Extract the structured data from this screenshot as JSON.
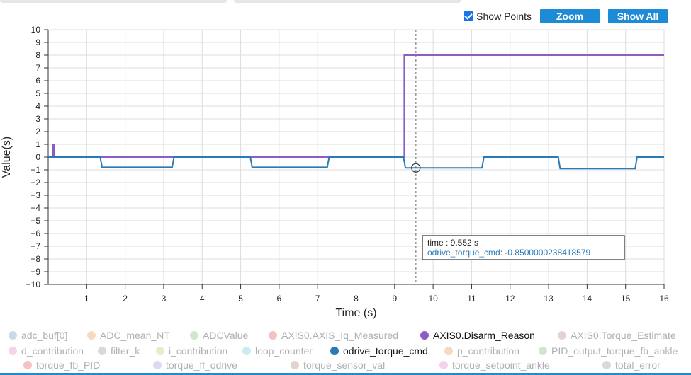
{
  "toolbar": {
    "show_points_label": "Show Points",
    "zoom_label": "Zoom",
    "show_all_label": "Show All"
  },
  "tooltip": {
    "line1": "time : 9.552 s",
    "line2": "odrive_torque_cmd: -0.8500000238418579"
  },
  "chart_data": {
    "type": "line",
    "xlabel": "Time (s)",
    "ylabel": "Value(s)",
    "xlim": [
      0,
      16
    ],
    "ylim": [
      -10,
      10
    ],
    "x_ticks": [
      1,
      2,
      3,
      4,
      5,
      6,
      7,
      8,
      9,
      10,
      11,
      12,
      13,
      14,
      15,
      16
    ],
    "y_ticks": [
      10,
      9,
      8,
      7,
      6,
      5,
      4,
      3,
      2,
      1,
      0,
      -1,
      -2,
      -3,
      -4,
      -5,
      -6,
      -7,
      -8,
      -9,
      -10
    ],
    "grid": true,
    "cursor_time": 9.552,
    "series": [
      {
        "name": "AXIS0.Disarm_Reason",
        "color": "#8e5cc4",
        "points": [
          [
            0,
            0
          ],
          [
            0.12,
            0
          ],
          [
            0.12,
            1
          ],
          [
            0.15,
            1
          ],
          [
            0.15,
            0
          ],
          [
            1.4,
            0
          ],
          [
            3.2,
            0
          ],
          [
            5.3,
            0
          ],
          [
            7.2,
            0
          ],
          [
            9.25,
            0
          ],
          [
            9.25,
            8
          ],
          [
            16,
            8
          ]
        ]
      },
      {
        "name": "odrive_torque_cmd",
        "color": "#2a7ab8",
        "points": [
          [
            0,
            0
          ],
          [
            1.35,
            0
          ],
          [
            1.4,
            -0.8
          ],
          [
            3.22,
            -0.8
          ],
          [
            3.27,
            0
          ],
          [
            5.25,
            0
          ],
          [
            5.3,
            -0.8
          ],
          [
            7.25,
            -0.8
          ],
          [
            7.3,
            0
          ],
          [
            9.23,
            0
          ],
          [
            9.28,
            -0.85
          ],
          [
            11.27,
            -0.85
          ],
          [
            11.32,
            0
          ],
          [
            13.25,
            0
          ],
          [
            13.3,
            -0.9
          ],
          [
            15.25,
            -0.9
          ],
          [
            15.3,
            0
          ],
          [
            16,
            0
          ]
        ]
      }
    ],
    "legend": [
      {
        "name": "adc_buf[0]",
        "color": "#c9dbe8",
        "active": false
      },
      {
        "name": "ADC_mean_NT",
        "color": "#f7d9bf",
        "active": false
      },
      {
        "name": "ADCValue",
        "color": "#cfe8cc",
        "active": false
      },
      {
        "name": "AXIS0.AXIS_Iq_Measured",
        "color": "#f3c3c3",
        "active": false
      },
      {
        "name": "AXIS0.Disarm_Reason",
        "color": "#8e5cc4",
        "active": true
      },
      {
        "name": "AXIS0.Torque_Estimate",
        "color": "#e0d3d0",
        "active": false
      },
      {
        "name": "d_contribution",
        "color": "#f5d3ea",
        "active": false
      },
      {
        "name": "filter_k",
        "color": "#d9d9d9",
        "active": false
      },
      {
        "name": "i_contribution",
        "color": "#e8edc9",
        "active": false
      },
      {
        "name": "loop_counter",
        "color": "#c8ecf0",
        "active": false
      },
      {
        "name": "odrive_torque_cmd",
        "color": "#2a7ab8",
        "active": true
      },
      {
        "name": "p_contribution",
        "color": "#f7d9bf",
        "active": false
      },
      {
        "name": "PID_output_torque_fb_ankle",
        "color": "#cfe8cc",
        "active": false
      },
      {
        "name": "torque_fb_PID",
        "color": "#f3c3c3",
        "active": false
      },
      {
        "name": "torque_ff_odrive",
        "color": "#e2d7f0",
        "active": false
      },
      {
        "name": "torque_sensor_val",
        "color": "#e0d3d0",
        "active": false
      },
      {
        "name": "torque_setpoint_ankle",
        "color": "#f5d3ea",
        "active": false
      },
      {
        "name": "total_error",
        "color": "#d9d9d9",
        "active": false
      }
    ]
  }
}
